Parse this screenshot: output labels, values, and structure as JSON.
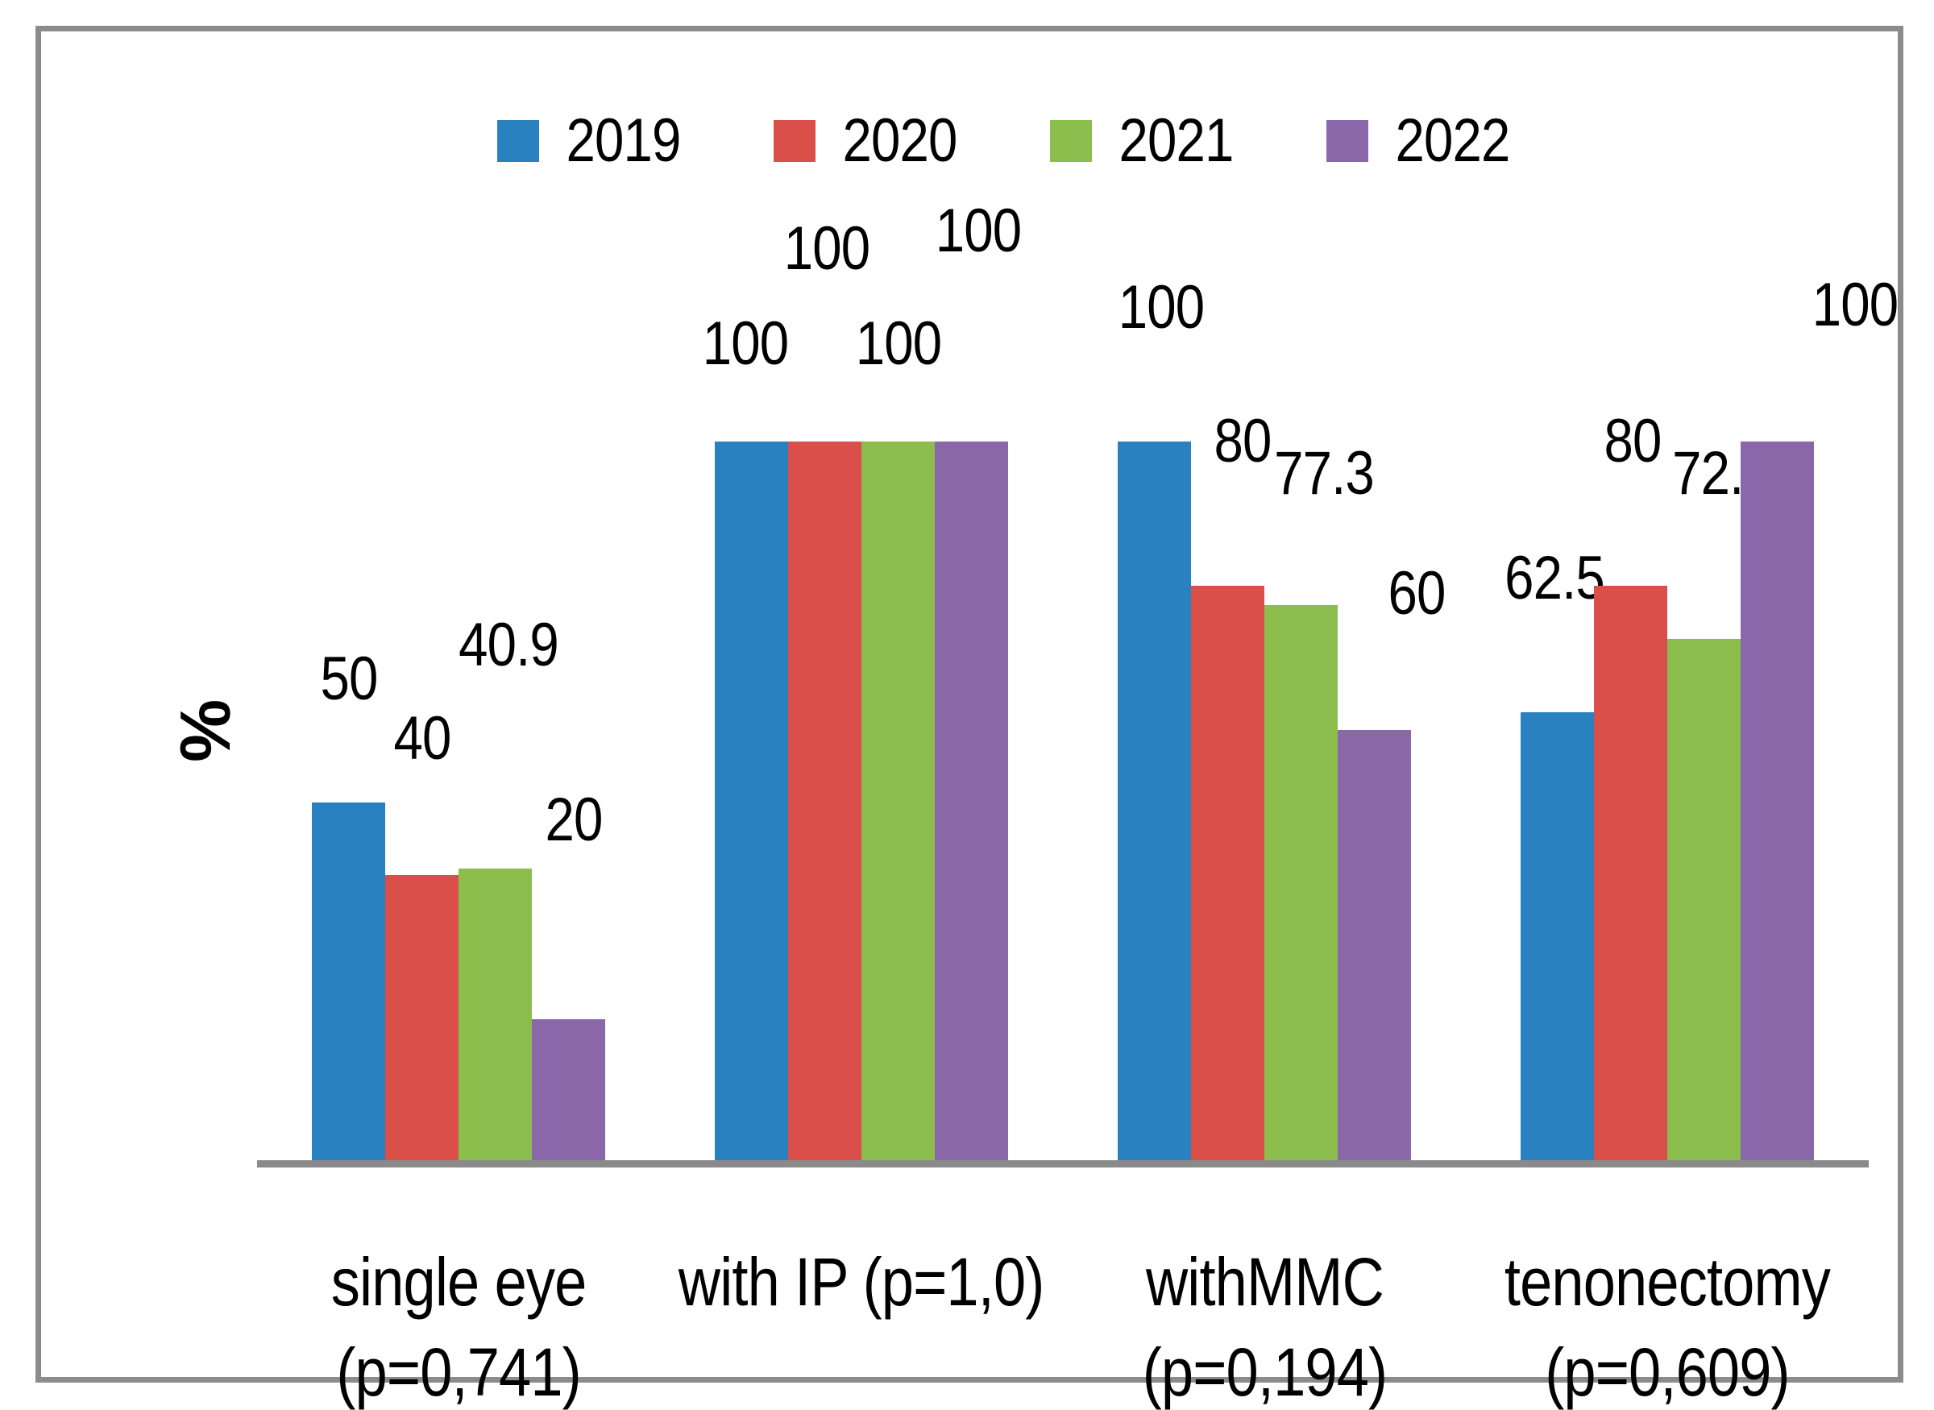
{
  "chart_data": {
    "type": "bar",
    "title": "",
    "ylabel": "%",
    "ylim": [
      0,
      100
    ],
    "grid": false,
    "legend_position": "top-center",
    "legend_entries": [
      "2019",
      "2020",
      "2021",
      "2022"
    ],
    "categories": [
      "single eye (p=0,741)",
      "with IP (p=1,0)",
      "withMMC (p=0,194)",
      "tenonectomy (p=0,609)"
    ],
    "category_lines": [
      [
        "single eye",
        "(p=0,741)"
      ],
      [
        "with IP (p=1,0)"
      ],
      [
        "withMMC",
        "(p=0,194)"
      ],
      [
        "tenonectomy",
        "(p=0,609)"
      ]
    ],
    "series": [
      {
        "name": "2019",
        "color": "#2A81C0",
        "values": [
          50,
          100,
          100,
          62.5
        ],
        "data_labels": [
          "50",
          "100",
          "100",
          "62.5"
        ]
      },
      {
        "name": "2020",
        "color": "#DB4F4B",
        "values": [
          40,
          100,
          80,
          80
        ],
        "data_labels": [
          "40",
          "100",
          "80",
          "80"
        ]
      },
      {
        "name": "2021",
        "color": "#8CBE4E",
        "values": [
          40.9,
          100,
          77.3,
          72.7
        ],
        "data_labels": [
          "40.9",
          "100",
          "77.3",
          "72.7"
        ]
      },
      {
        "name": "2022",
        "color": "#8A67A9",
        "values": [
          20,
          100,
          60,
          100
        ],
        "data_labels": [
          "20",
          "100",
          "60",
          "100"
        ]
      }
    ],
    "axis_color": "#8A8A8A",
    "frame_color": "#8B8B8B",
    "text_color": "#000000",
    "layout_hints": {
      "data_label_offsets": [
        [
          {
            "dx": 0,
            "gap": 44
          },
          {
            "dx": -8,
            "gap": 12
          },
          {
            "dx": 8,
            "gap": 57
          },
          {
            "dx": -4,
            "gap": 57
          }
        ],
        [
          {
            "dx": 0,
            "gap": 60
          },
          {
            "dx": 2,
            "gap": 130
          },
          {
            "dx": 18,
            "gap": 70
          },
          {
            "dx": 2,
            "gap": 70
          }
        ],
        [
          {
            "dx": 16,
            "gap": 168
          },
          {
            "dx": 0,
            "gap": 12
          },
          {
            "dx": 28,
            "gap": 54
          },
          {
            "dx": 22,
            "gap": 96
          }
        ],
        [
          {
            "dx": 6,
            "gap": 138
          },
          {
            "dx": 8,
            "gap": 152
          },
          {
            "dx": 52,
            "gap": 60
          },
          {
            "dx": 96,
            "gap": 60
          }
        ]
      ]
    }
  }
}
